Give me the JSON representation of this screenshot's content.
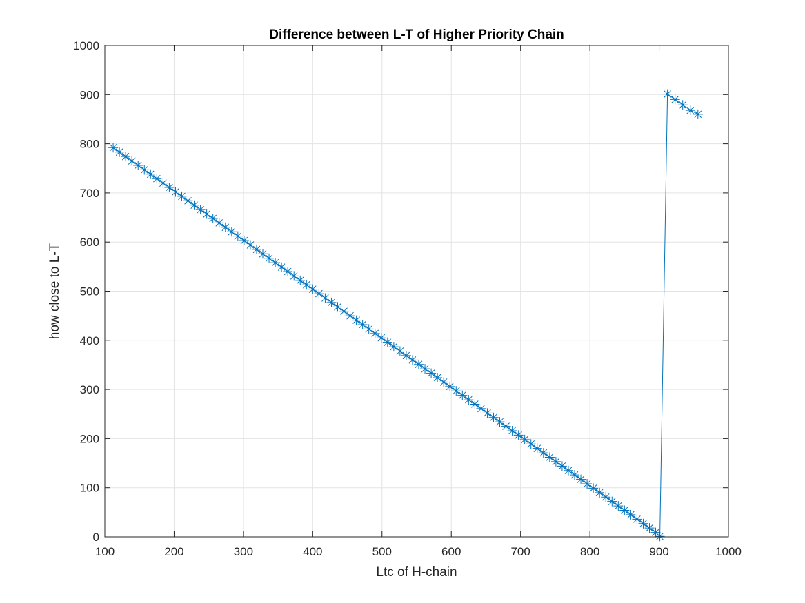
{
  "chart_data": {
    "type": "line",
    "title": "Difference between L-T of Higher Priority Chain",
    "xlabel": "Ltc of H-chain",
    "ylabel": "how close to L-T",
    "xlim": [
      100,
      1000
    ],
    "ylim": [
      0,
      1000
    ],
    "xticks": [
      100,
      200,
      300,
      400,
      500,
      600,
      700,
      800,
      900,
      1000
    ],
    "yticks": [
      0,
      100,
      200,
      300,
      400,
      500,
      600,
      700,
      800,
      900,
      1000
    ],
    "grid": true,
    "marker": "asterisk",
    "series": [
      {
        "color": "#0072BD",
        "x": [
          112,
          121,
          130,
          139,
          148,
          157,
          166,
          175,
          184,
          193,
          202,
          211,
          220,
          229,
          238,
          247,
          256,
          265,
          274,
          283,
          292,
          301,
          310,
          319,
          328,
          337,
          346,
          355,
          364,
          373,
          382,
          391,
          400,
          409,
          418,
          427,
          436,
          445,
          454,
          463,
          472,
          481,
          490,
          499,
          508,
          517,
          526,
          535,
          544,
          553,
          562,
          571,
          580,
          589,
          598,
          607,
          616,
          625,
          634,
          643,
          652,
          661,
          670,
          679,
          688,
          697,
          706,
          715,
          724,
          733,
          742,
          751,
          760,
          769,
          778,
          787,
          796,
          805,
          814,
          823,
          832,
          841,
          850,
          859,
          868,
          877,
          886,
          895,
          901,
          912,
          923,
          934,
          945,
          956
        ],
        "y": [
          792,
          783,
          774,
          765,
          756,
          747,
          738,
          729,
          720,
          711,
          702,
          693,
          684,
          675,
          666,
          657,
          648,
          639,
          630,
          621,
          612,
          603,
          594,
          585,
          576,
          567,
          558,
          549,
          540,
          531,
          522,
          513,
          504,
          495,
          486,
          477,
          468,
          459,
          450,
          441,
          432,
          423,
          414,
          405,
          396,
          387,
          378,
          369,
          360,
          351,
          342,
          333,
          324,
          315,
          306,
          297,
          288,
          279,
          270,
          261,
          252,
          243,
          234,
          225,
          216,
          207,
          198,
          189,
          180,
          171,
          162,
          153,
          144,
          135,
          126,
          117,
          108,
          99,
          90,
          81,
          72,
          63,
          54,
          45,
          36,
          27,
          18,
          9,
          1,
          901,
          890,
          879,
          868,
          860
        ]
      }
    ]
  }
}
